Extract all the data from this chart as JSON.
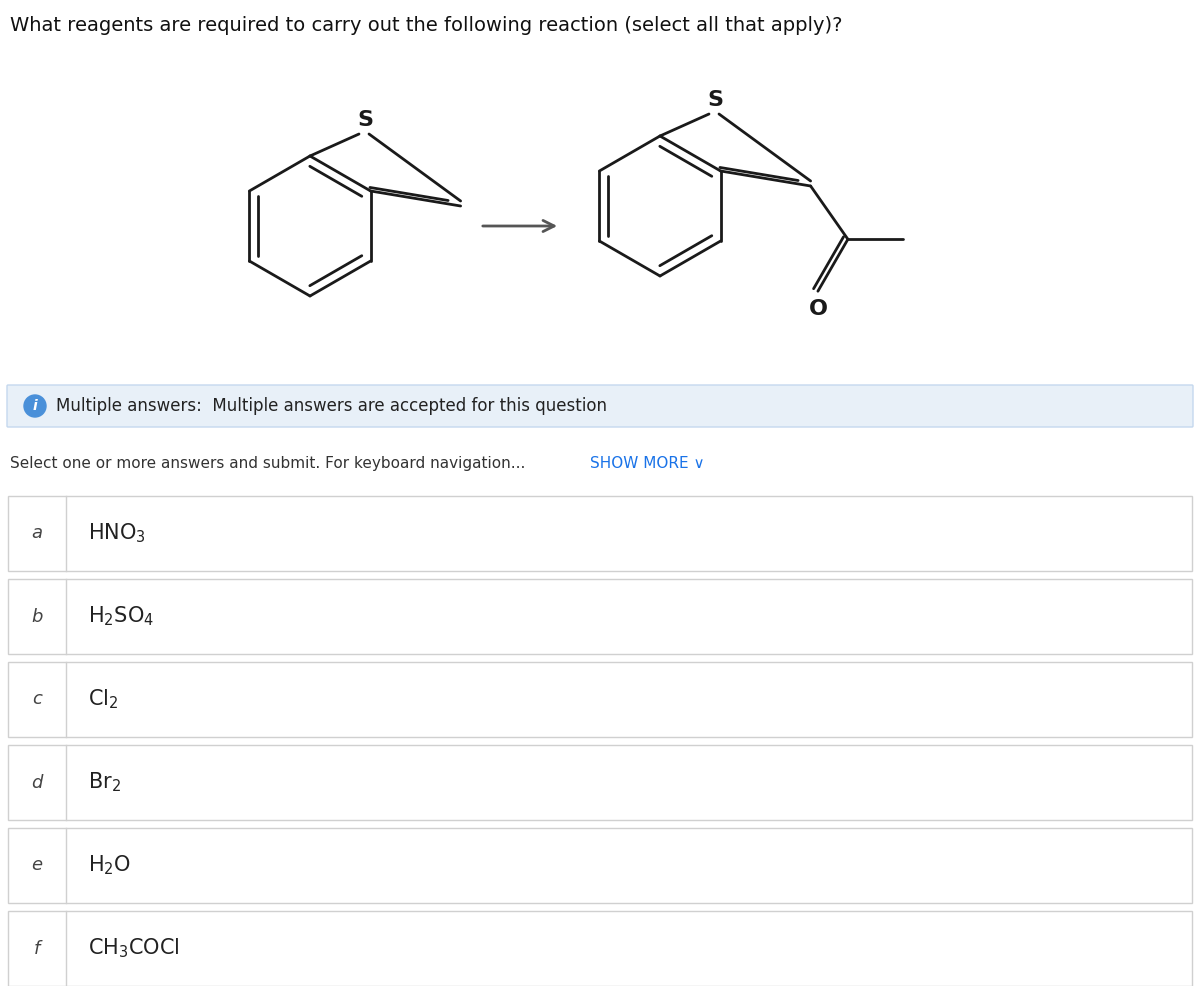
{
  "title": "What reagents are required to carry out the following reaction (select all that apply)?",
  "info_text": "Multiple answers:  Multiple answers are accepted for this question",
  "show_more_color": "#1a73e8",
  "options": [
    {
      "label": "a",
      "text": "HNO$_3$"
    },
    {
      "label": "b",
      "text": "H$_2$SO$_4$"
    },
    {
      "label": "c",
      "text": "Cl$_2$"
    },
    {
      "label": "d",
      "text": "Br$_2$"
    },
    {
      "label": "e",
      "text": "H$_2$O"
    },
    {
      "label": "f",
      "text": "CH$_3$COCl"
    }
  ],
  "bg_color": "#ffffff",
  "info_bg_color": "#e8f0f8",
  "info_border_color": "#c5d8ee",
  "option_border_color": "#d0d0d0",
  "text_color": "#222222",
  "title_color": "#111111",
  "mol_color": "#1a1a1a",
  "arrow_color": "#555555"
}
